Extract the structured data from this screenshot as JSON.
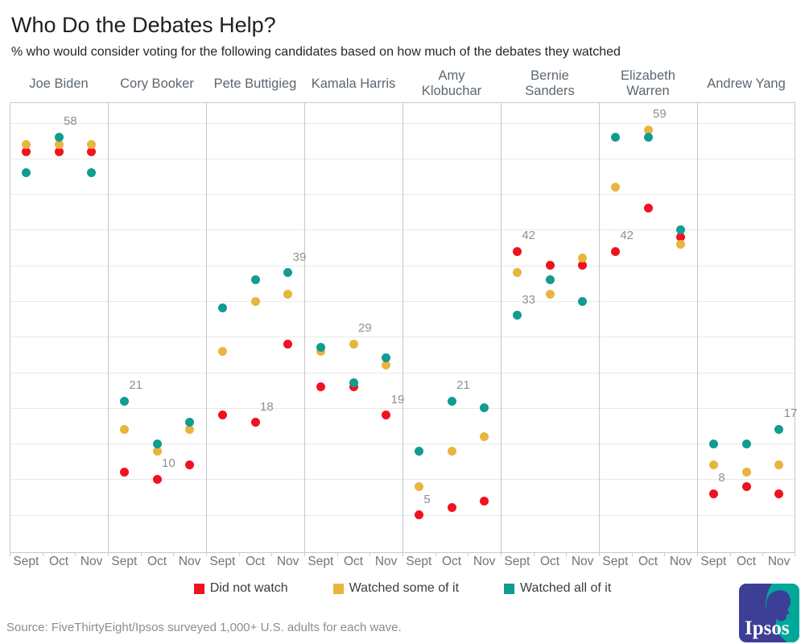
{
  "title": "Who Do the Debates Help?",
  "subtitle": "% who would consider voting for the following candidates based on how much of the debates they watched",
  "source": "Source: FiveThirtyEight/Ipsos surveyed 1,000+ U.S. adults for each wave.",
  "logo_text": "Ipsos",
  "colors": {
    "did_not_watch": "#f2111f",
    "watched_some": "#e8b53e",
    "watched_all": "#119b91",
    "logo_indigo": "#3d3e96",
    "logo_teal": "#00a79b"
  },
  "legend": [
    {
      "label": "Did not watch",
      "color_key": "did_not_watch"
    },
    {
      "label": "Watched some of it",
      "color_key": "watched_some"
    },
    {
      "label": "Watched all of it",
      "color_key": "watched_all"
    }
  ],
  "chart_data": {
    "type": "scatter",
    "title": "Who Do the Debates Help?",
    "x_categories": [
      "Sept",
      "Oct",
      "Nov"
    ],
    "ylim": [
      0,
      63
    ],
    "grid_step": 5,
    "legend_position": "bottom",
    "series_keys": [
      "did_not_watch",
      "watched_some",
      "watched_all"
    ],
    "series_labels": {
      "did_not_watch": "Did not watch",
      "watched_some": "Watched some of it",
      "watched_all": "Watched all of it"
    },
    "candidates": [
      {
        "name_lines": [
          "Joe Biden"
        ],
        "did_not_watch": [
          56,
          56,
          56
        ],
        "watched_some": [
          57,
          57,
          57
        ],
        "watched_all": [
          53,
          58,
          53
        ],
        "annotations": [
          {
            "month": 1,
            "series": "watched_all",
            "text": "58"
          }
        ]
      },
      {
        "name_lines": [
          "Cory Booker"
        ],
        "did_not_watch": [
          11,
          10,
          12
        ],
        "watched_some": [
          17,
          14,
          17
        ],
        "watched_all": [
          21,
          15,
          18
        ],
        "annotations": [
          {
            "month": 0,
            "series": "watched_all",
            "text": "21"
          },
          {
            "month": 1,
            "series": "did_not_watch",
            "text": "10"
          }
        ]
      },
      {
        "name_lines": [
          "Pete Buttigieg"
        ],
        "did_not_watch": [
          19,
          18,
          29
        ],
        "watched_some": [
          28,
          35,
          36
        ],
        "watched_all": [
          34,
          38,
          39
        ],
        "annotations": [
          {
            "month": 1,
            "series": "did_not_watch",
            "text": "18"
          },
          {
            "month": 2,
            "series": "watched_all",
            "text": "39"
          }
        ]
      },
      {
        "name_lines": [
          "Kamala Harris"
        ],
        "did_not_watch": [
          23,
          23,
          19
        ],
        "watched_some": [
          28,
          29,
          26
        ],
        "watched_all": [
          28,
          23,
          27
        ],
        "annotations": [
          {
            "month": 1,
            "series": "watched_some",
            "text": "29"
          },
          {
            "month": 2,
            "series": "did_not_watch",
            "text": "19"
          }
        ]
      },
      {
        "name_lines": [
          "Amy",
          "Klobuchar"
        ],
        "did_not_watch": [
          5,
          6,
          7
        ],
        "watched_some": [
          9,
          14,
          16
        ],
        "watched_all": [
          14,
          21,
          20
        ],
        "annotations": [
          {
            "month": 0,
            "series": "did_not_watch",
            "text": "5"
          },
          {
            "month": 1,
            "series": "watched_all",
            "text": "21"
          }
        ]
      },
      {
        "name_lines": [
          "Bernie",
          "Sanders"
        ],
        "did_not_watch": [
          42,
          40,
          40
        ],
        "watched_some": [
          39,
          36,
          41
        ],
        "watched_all": [
          33,
          38,
          35
        ],
        "annotations": [
          {
            "month": 0,
            "series": "did_not_watch",
            "text": "42"
          },
          {
            "month": 0,
            "series": "watched_all",
            "text": "33"
          }
        ]
      },
      {
        "name_lines": [
          "Elizabeth",
          "Warren"
        ],
        "did_not_watch": [
          42,
          48,
          44
        ],
        "watched_some": [
          51,
          59,
          43
        ],
        "watched_all": [
          58,
          58,
          45
        ],
        "annotations": [
          {
            "month": 0,
            "series": "did_not_watch",
            "text": "42"
          },
          {
            "month": 1,
            "series": "watched_some",
            "text": "59"
          }
        ]
      },
      {
        "name_lines": [
          "Andrew Yang"
        ],
        "did_not_watch": [
          8,
          9,
          8
        ],
        "watched_some": [
          12,
          11,
          12
        ],
        "watched_all": [
          15,
          15,
          17
        ],
        "annotations": [
          {
            "month": 0,
            "series": "did_not_watch",
            "text": "8"
          },
          {
            "month": 2,
            "series": "watched_all",
            "text": "17"
          }
        ]
      }
    ]
  }
}
